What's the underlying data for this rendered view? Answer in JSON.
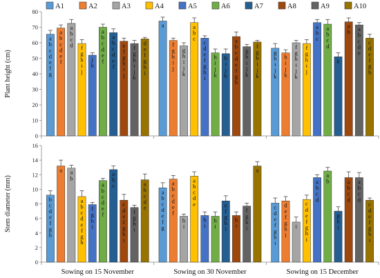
{
  "legend": [
    "A1",
    "A2",
    "A3",
    "A4",
    "A5",
    "A6",
    "A7",
    "A8",
    "A9",
    "A10"
  ],
  "colors": [
    "#5b9bd5",
    "#ed7d31",
    "#a5a5a5",
    "#ffc000",
    "#4472c4",
    "#70ad47",
    "#255e91",
    "#9e480e",
    "#636363",
    "#997300"
  ],
  "categories": [
    "Sowing on 15 November",
    "Sowing on 30 November",
    "Sowing on 15 December"
  ],
  "chart_data": [
    {
      "type": "bar",
      "ylabel": "Plant height (cm)",
      "ylim": [
        0,
        80
      ],
      "yticks": [
        0,
        10,
        20,
        30,
        40,
        50,
        60,
        70,
        80
      ],
      "categories": [
        "Sowing on 15 November",
        "Sowing on 30 November",
        "Sowing on 15 December"
      ],
      "series": [
        {
          "name": "A1",
          "values": [
            65.5,
            74.0,
            56.5
          ],
          "errors": [
            2.5,
            2.5,
            3.0
          ],
          "labels": [
            "abcdefg",
            "a",
            "ghijk"
          ]
        },
        {
          "name": "A2",
          "values": [
            69.5,
            61.5,
            53.5
          ],
          "errors": [
            2.0,
            1.5,
            2.0
          ],
          "labels": [
            "abcdef",
            "fghij",
            "hijk"
          ]
        },
        {
          "name": "A3",
          "values": [
            72.5,
            58.0,
            60.0
          ],
          "errors": [
            2.5,
            2.0,
            1.5
          ],
          "labels": [
            "abcd",
            "ghijk",
            "fghijk"
          ]
        },
        {
          "name": "A4",
          "values": [
            59.5,
            73.0,
            59.5
          ],
          "errors": [
            2.5,
            3.0,
            2.5
          ],
          "labels": [
            "fghij",
            "abc",
            "fghij"
          ]
        },
        {
          "name": "A5",
          "values": [
            52.0,
            63.0,
            73.0
          ],
          "errors": [
            1.5,
            1.5,
            2.0
          ],
          "labels": [
            "jk",
            "cdefghi",
            "abc"
          ]
        },
        {
          "name": "A6",
          "values": [
            70.0,
            53.5,
            72.0
          ],
          "errors": [
            2.0,
            2.5,
            3.0
          ],
          "labels": [
            "abcdef",
            "hijk",
            "abcd"
          ]
        },
        {
          "name": "A7",
          "values": [
            66.5,
            53.0,
            51.0
          ],
          "errors": [
            2.5,
            3.0,
            2.5
          ],
          "labels": [
            "abcdef",
            "hijk",
            "k"
          ]
        },
        {
          "name": "A8",
          "values": [
            61.0,
            64.0,
            73.5
          ],
          "errors": [
            2.0,
            3.0,
            2.5
          ],
          "labels": [
            "efghij",
            "abcdefgh",
            "ab"
          ]
        },
        {
          "name": "A9",
          "values": [
            59.5,
            57.5,
            71.5
          ],
          "errors": [
            2.0,
            1.5,
            1.5
          ],
          "labels": [
            "fghijk",
            "ghijk",
            "abcde"
          ]
        },
        {
          "name": "A10",
          "values": [
            62.5,
            60.5,
            63.0
          ],
          "errors": [
            1.0,
            1.0,
            2.5
          ],
          "labels": [
            "defghi",
            "fghijk",
            "cdefgh"
          ]
        }
      ]
    },
    {
      "type": "bar",
      "ylabel": "Stem diameter (mm)",
      "ylim": [
        0,
        16
      ],
      "yticks": [
        0,
        2,
        4,
        6,
        8,
        10,
        12,
        14,
        16
      ],
      "categories": [
        "Sowing on 15 November",
        "Sowing on 30 November",
        "Sowing on 15 December"
      ],
      "series": [
        {
          "name": "A1",
          "values": [
            9.2,
            10.2,
            8.1
          ],
          "errors": [
            0.6,
            0.7,
            0.7
          ],
          "labels": [
            "bcdefgh",
            "abcdefg",
            "cdefghi"
          ]
        },
        {
          "name": "A2",
          "values": [
            13.2,
            11.4,
            8.4
          ],
          "errors": [
            0.8,
            0.5,
            0.6
          ],
          "labels": [
            "a",
            "abcdef",
            "defghi"
          ]
        },
        {
          "name": "A3",
          "values": [
            12.9,
            6.3,
            5.5
          ],
          "errors": [
            0.4,
            0.3,
            0.7
          ],
          "labels": [
            "ab",
            "hi",
            "i"
          ]
        },
        {
          "name": "A4",
          "values": [
            9.0,
            11.8,
            8.6
          ],
          "errors": [
            0.8,
            0.6,
            0.6
          ],
          "labels": [
            "abcdefgh",
            "abcde",
            "cdefghi"
          ]
        },
        {
          "name": "A5",
          "values": [
            7.9,
            6.4,
            11.6
          ],
          "errors": [
            0.3,
            0.5,
            0.4
          ],
          "labels": [
            "fghi",
            "hi",
            "abcd"
          ]
        },
        {
          "name": "A6",
          "values": [
            11.2,
            6.3,
            12.5
          ],
          "errors": [
            0.3,
            0.6,
            0.5
          ],
          "labels": [
            "abcdef",
            "hi",
            "ab"
          ]
        },
        {
          "name": "A7",
          "values": [
            12.7,
            8.4,
            7.0
          ],
          "errors": [
            0.5,
            0.7,
            0.6
          ],
          "labels": [
            "abc",
            "efghi",
            "ghi"
          ]
        },
        {
          "name": "A8",
          "values": [
            8.5,
            6.4,
            11.6
          ],
          "errors": [
            0.8,
            0.5,
            0.8
          ],
          "labels": [
            "cdefghi",
            "hi",
            "abcd"
          ]
        },
        {
          "name": "A9",
          "values": [
            7.5,
            7.7,
            11.6
          ],
          "errors": [
            0.3,
            0.4,
            0.7
          ],
          "labels": [
            "fghi",
            "fghi",
            "abcd"
          ]
        },
        {
          "name": "A10",
          "values": [
            11.3,
            13.2,
            8.5
          ],
          "errors": [
            0.8,
            0.6,
            0.3
          ],
          "labels": [
            "abcde",
            "a",
            "cdefghi"
          ]
        }
      ]
    }
  ]
}
